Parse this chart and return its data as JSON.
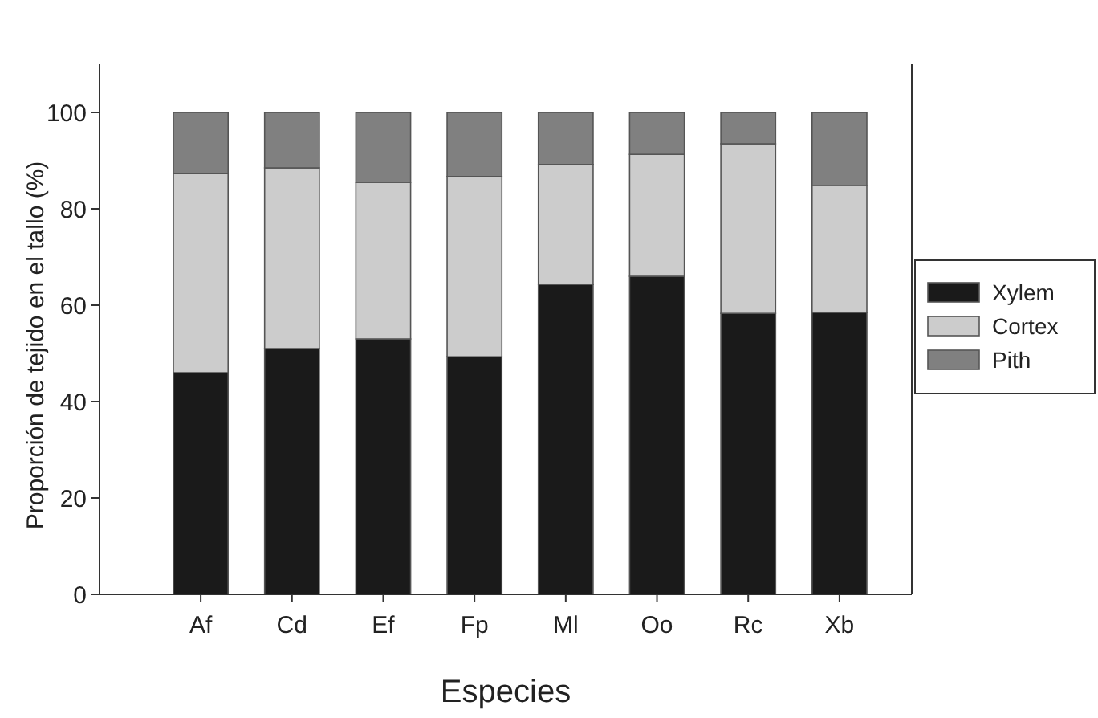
{
  "chart_data": {
    "type": "bar",
    "stacked": true,
    "xlabel": "Especies",
    "ylabel": "Proporción de tejido en el tallo (%)",
    "categories": [
      "Af",
      "Cd",
      "Ef",
      "Fp",
      "Ml",
      "Oo",
      "Rc",
      "Xb"
    ],
    "series": [
      {
        "name": "Xylem",
        "color": "#1a1a1a",
        "values": [
          46,
          51,
          53,
          49.3,
          64.3,
          66,
          58.3,
          58.5
        ]
      },
      {
        "name": "Cortex",
        "color": "#cccccc",
        "values": [
          41.3,
          37.5,
          32.5,
          37.4,
          24.9,
          25.3,
          35.2,
          26.3
        ]
      },
      {
        "name": "Pith",
        "color": "#808080",
        "values": [
          12.7,
          11.5,
          14.5,
          13.3,
          10.8,
          8.7,
          6.5,
          15.2
        ]
      }
    ],
    "ylim": [
      0,
      110
    ],
    "yticks": [
      0,
      20,
      40,
      60,
      80,
      100
    ],
    "grid": false,
    "legend": "right"
  }
}
